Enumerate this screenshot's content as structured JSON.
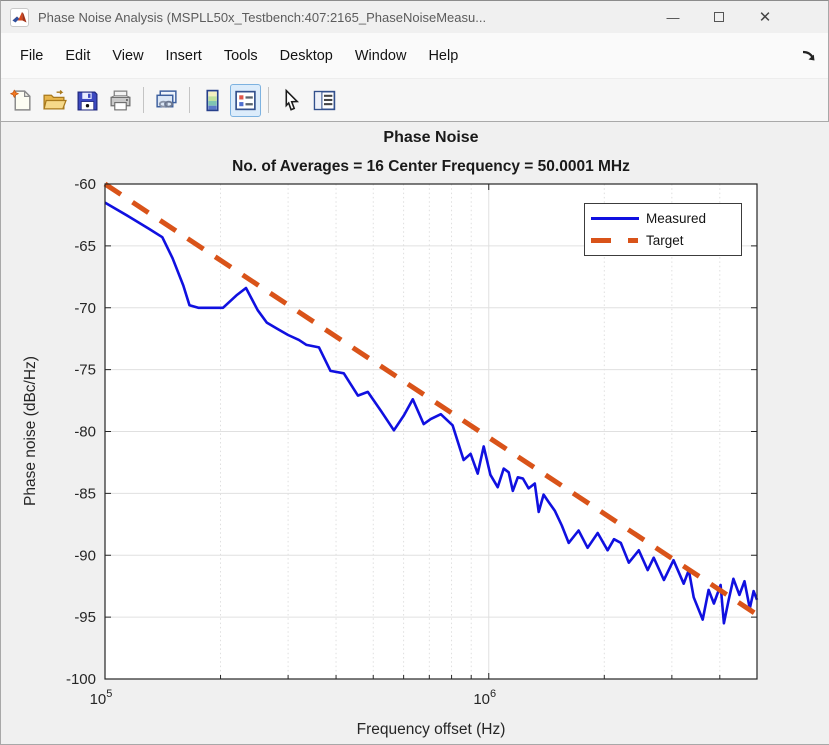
{
  "window": {
    "title": "Phase Noise Analysis (MSPLL50x_Testbench:407:2165_PhaseNoiseMeasu...",
    "controls": {
      "minimize": "—",
      "close": "✕"
    }
  },
  "menubar": {
    "items": [
      "File",
      "Edit",
      "View",
      "Insert",
      "Tools",
      "Desktop",
      "Window",
      "Help"
    ]
  },
  "toolbar": {
    "buttons": [
      "new-figure",
      "open-file",
      "save-figure",
      "print-figure",
      "link-plot",
      "insert-colorbar",
      "insert-legend",
      "edit-plot",
      "property-inspector"
    ],
    "active_button": "insert-legend"
  },
  "chart_data": {
    "type": "line",
    "title": "Phase Noise",
    "subtitle": "No. of Averages = 16 Center Frequency = 50.0001 MHz",
    "xlabel": "Frequency offset (Hz)",
    "ylabel": "Phase noise (dBc/Hz)",
    "x_scale": "log",
    "xlim": [
      100000,
      5000000
    ],
    "ylim": [
      -100,
      -60
    ],
    "yticks": [
      -100,
      -95,
      -90,
      -85,
      -80,
      -75,
      -70,
      -65,
      -60
    ],
    "xticks": [
      {
        "value": 100000,
        "base": "10",
        "exp": "5"
      },
      {
        "value": 1000000,
        "base": "10",
        "exp": "6"
      }
    ],
    "x_minor": [
      200000,
      300000,
      400000,
      500000,
      600000,
      700000,
      800000,
      900000,
      2000000,
      3000000,
      4000000
    ],
    "grid": true,
    "minor_grid": true,
    "legend": {
      "position": "northeast",
      "entries": [
        {
          "label": "Measured"
        },
        {
          "label": "Target"
        }
      ]
    },
    "series": [
      {
        "name": "Measured",
        "color": "#1010e0",
        "style": "solid",
        "width": 2.6,
        "points": [
          [
            100000,
            -61.5
          ],
          [
            115000,
            -62.6
          ],
          [
            130000,
            -63.6
          ],
          [
            141000,
            -64.3
          ],
          [
            150000,
            -66.0
          ],
          [
            160000,
            -68.2
          ],
          [
            166000,
            -69.8
          ],
          [
            175000,
            -70.0
          ],
          [
            190000,
            -70.0
          ],
          [
            203000,
            -70.0
          ],
          [
            220000,
            -69.0
          ],
          [
            233000,
            -68.4
          ],
          [
            250000,
            -70.2
          ],
          [
            264000,
            -71.2
          ],
          [
            281000,
            -71.7
          ],
          [
            300000,
            -72.2
          ],
          [
            320000,
            -72.6
          ],
          [
            335000,
            -73.0
          ],
          [
            361000,
            -73.2
          ],
          [
            387000,
            -75.1
          ],
          [
            419000,
            -75.3
          ],
          [
            456000,
            -77.1
          ],
          [
            484000,
            -76.8
          ],
          [
            523000,
            -78.3
          ],
          [
            566000,
            -79.9
          ],
          [
            601000,
            -78.7
          ],
          [
            634000,
            -77.4
          ],
          [
            677000,
            -79.4
          ],
          [
            706000,
            -79.0
          ],
          [
            750000,
            -78.6
          ],
          [
            805000,
            -79.5
          ],
          [
            860000,
            -82.3
          ],
          [
            897000,
            -81.8
          ],
          [
            936000,
            -83.4
          ],
          [
            970000,
            -81.2
          ],
          [
            1010000,
            -83.5
          ],
          [
            1055000,
            -84.5
          ],
          [
            1094000,
            -83.0
          ],
          [
            1127000,
            -83.3
          ],
          [
            1155000,
            -84.8
          ],
          [
            1190000,
            -83.7
          ],
          [
            1227000,
            -83.8
          ],
          [
            1270000,
            -84.6
          ],
          [
            1318000,
            -84.2
          ],
          [
            1349000,
            -86.5
          ],
          [
            1390000,
            -85.1
          ],
          [
            1432000,
            -85.7
          ],
          [
            1486000,
            -86.4
          ],
          [
            1550000,
            -87.6
          ],
          [
            1615000,
            -89.0
          ],
          [
            1714000,
            -88.0
          ],
          [
            1810000,
            -89.4
          ],
          [
            1923000,
            -88.2
          ],
          [
            2040000,
            -89.6
          ],
          [
            2120000,
            -88.7
          ],
          [
            2208000,
            -89.0
          ],
          [
            2317000,
            -90.6
          ],
          [
            2460000,
            -89.6
          ],
          [
            2595000,
            -91.2
          ],
          [
            2690000,
            -90.2
          ],
          [
            2860000,
            -92.0
          ],
          [
            3030000,
            -90.4
          ],
          [
            3220000,
            -92.3
          ],
          [
            3320000,
            -91.2
          ],
          [
            3420000,
            -93.4
          ],
          [
            3610000,
            -95.2
          ],
          [
            3740000,
            -92.8
          ],
          [
            3860000,
            -93.9
          ],
          [
            4020000,
            -92.4
          ],
          [
            4100000,
            -95.5
          ],
          [
            4220000,
            -93.6
          ],
          [
            4340000,
            -91.9
          ],
          [
            4500000,
            -93.2
          ],
          [
            4640000,
            -92.1
          ],
          [
            4790000,
            -94.3
          ],
          [
            4900000,
            -92.9
          ],
          [
            5000000,
            -93.6
          ]
        ]
      },
      {
        "name": "Target",
        "color": "#d95319",
        "style": "dashed",
        "width": 5,
        "points": [
          [
            100000,
            -60.0
          ],
          [
            5000000,
            -94.8
          ]
        ]
      }
    ]
  }
}
